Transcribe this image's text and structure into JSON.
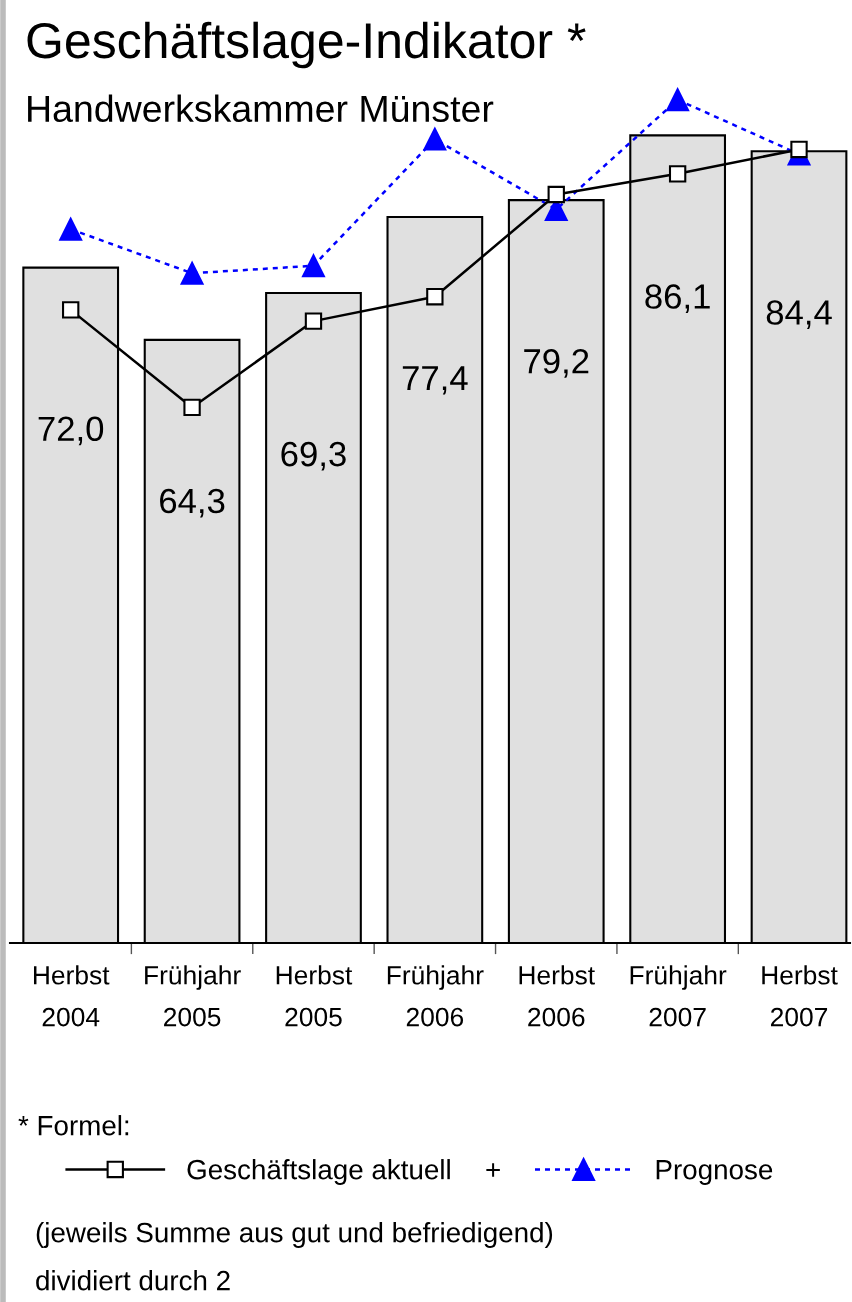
{
  "chart_data": {
    "type": "bar",
    "title": "Geschäftslage-Indikator *",
    "subtitle": "Handwerkskammer Münster",
    "categories": [
      "Herbst\n2004",
      "Frühjahr\n2005",
      "Herbst\n2005",
      "Frühjahr\n2006",
      "Herbst\n2006",
      "Frühjahr\n2007",
      "Herbst\n2007"
    ],
    "values": [
      72.0,
      64.3,
      69.3,
      77.4,
      79.2,
      86.1,
      84.4
    ],
    "value_labels": [
      "72,0",
      "64,3",
      "69,3",
      "77,4",
      "79,2",
      "86,1",
      "84,4"
    ],
    "color": "#e0e0e0",
    "series": [
      {
        "name": "Geschäftslage aktuell",
        "type": "line",
        "color": "#000000",
        "marker": "square",
        "line_style": "solid",
        "values": [
          67.5,
          57.1,
          66.3,
          68.9,
          79.8,
          82.0,
          84.6
        ]
      },
      {
        "name": "Prognose",
        "type": "line",
        "color": "#0000ff",
        "marker": "triangle",
        "line_style": "dashed",
        "values": [
          76.1,
          71.4,
          72.2,
          85.7,
          78.2,
          89.9,
          84.1
        ]
      }
    ],
    "ylim": [
      0,
      100
    ],
    "grid": false,
    "legend": "bottom",
    "annotations": [
      "* Formel:",
      "+",
      "(jeweils Summe aus gut und befriedigend)",
      "dividiert durch 2"
    ]
  }
}
